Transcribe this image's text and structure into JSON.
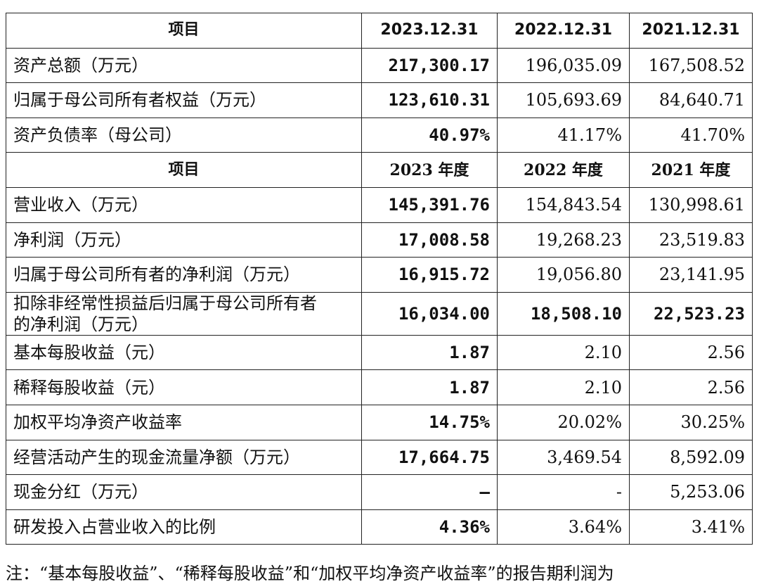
{
  "header1": [
    "项目",
    "2023.12.31",
    "2022.12.31",
    "2021.12.31"
  ],
  "balance_rows": [
    {
      "label": "资产总额（万元）",
      "v2023": "217,300.17",
      "v2022": "196,035.09",
      "v2021": "167,508.52"
    },
    {
      "label": "归属于母公司所有者权益（万元）",
      "v2023": "123,610.31",
      "v2022": "105,693.69",
      "v2021": "84,640.71"
    },
    {
      "label": "资产负债率（母公司）",
      "v2023": "40.97%",
      "v2022": "41.17%",
      "v2021": "41.70%"
    }
  ],
  "header2": [
    "项目",
    "2023 年度",
    "2022 年度",
    "2021 年度"
  ],
  "income_rows": [
    {
      "label": "营业收入（万元）",
      "v2023": "145,391.76",
      "v2022": "154,843.54",
      "v2021": "130,998.61"
    },
    {
      "label": "净利润（万元）",
      "v2023": "17,008.58",
      "v2022": "19,268.23",
      "v2021": "23,519.83"
    },
    {
      "label": "归属于母公司所有者的净利润（万元）",
      "v2023": "16,915.72",
      "v2022": "19,056.80",
      "v2021": "23,141.95"
    },
    {
      "label_line1": "扣除非经常性损益后归属于母公司所有者",
      "label_line2": "的净利润（万元）",
      "v2023": "16,034.00",
      "v2022": "18,508.10",
      "v2021": "22,523.23"
    },
    {
      "label": "基本每股收益（元）",
      "v2023": "1.87",
      "v2022": "2.10",
      "v2021": "2.56"
    },
    {
      "label": "稀释每股收益（元）",
      "v2023": "1.87",
      "v2022": "2.10",
      "v2021": "2.56"
    },
    {
      "label": "加权平均净资产收益率",
      "v2023": "14.75%",
      "v2022": "20.02%",
      "v2021": "30.25%"
    },
    {
      "label": "经营活动产生的现金流量净额（万元）",
      "v2023": "17,664.75",
      "v2022": "3,469.54",
      "v2021": "8,592.09"
    },
    {
      "label": "现金分红（万元）",
      "v2023": "–",
      "v2022": "-",
      "v2021": "5,253.06"
    },
    {
      "label": "研发投入占营业收入的比例",
      "v2023": "4.36%",
      "v2022": "3.64%",
      "v2021": "3.41%"
    }
  ],
  "note": "注：“基本每股收益”、“稀释每股收益”和“加权平均净资产收益率”的报告期利润为"
}
